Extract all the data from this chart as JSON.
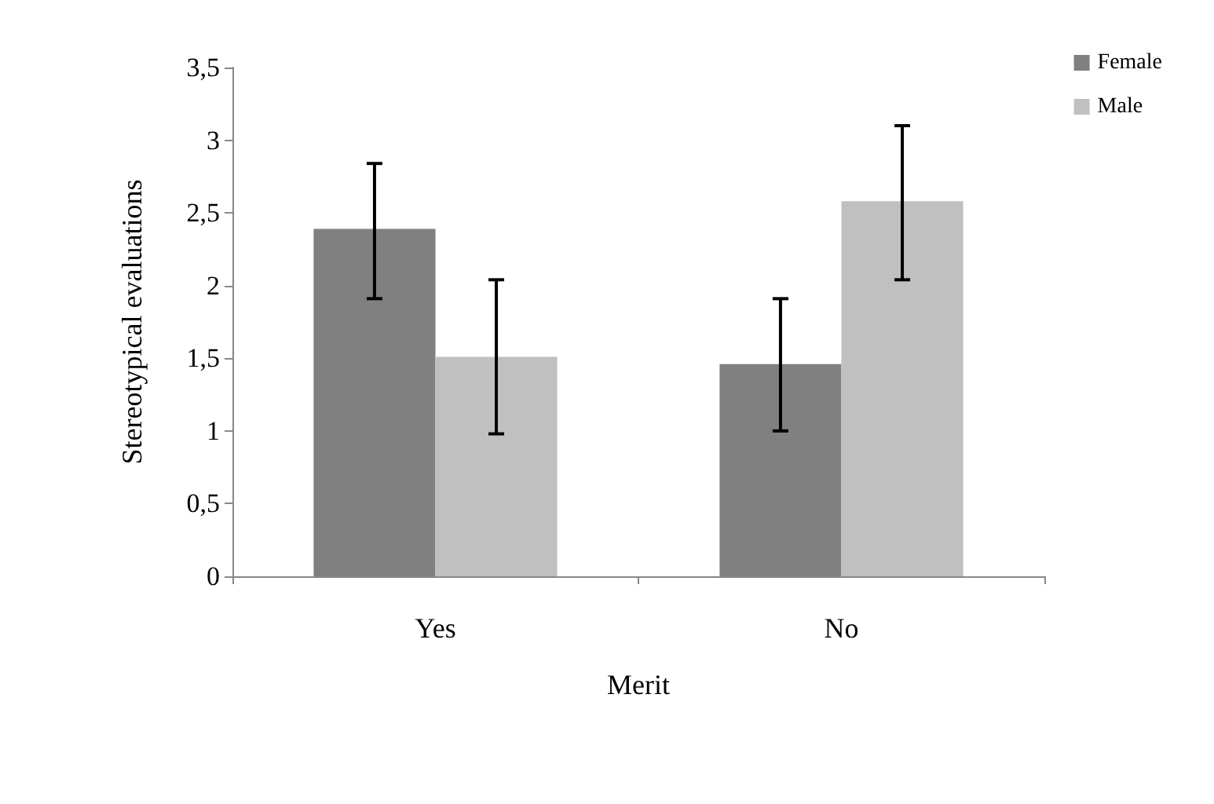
{
  "chart_data": {
    "type": "bar",
    "xlabel": "Merit",
    "ylabel": "Stereotypical evaluations",
    "categories": [
      "Yes",
      "No"
    ],
    "series": [
      {
        "name": "Female",
        "color": "#808080",
        "values": [
          2.39,
          1.46
        ],
        "errors": [
          [
            1.91,
            2.84
          ],
          [
            1.0,
            1.91
          ]
        ]
      },
      {
        "name": "Male",
        "color": "#c0c0c0",
        "values": [
          1.51,
          2.58
        ],
        "errors": [
          [
            0.98,
            2.04
          ],
          [
            2.04,
            3.1
          ]
        ]
      }
    ],
    "ylim": [
      0,
      3.5
    ],
    "yticks": [
      0,
      {
        "value": 0.5,
        "label": "0,5"
      },
      1,
      {
        "value": 1.5,
        "label": "1,5"
      },
      2,
      {
        "value": 2.5,
        "label": "2,5"
      },
      3,
      {
        "value": 3.5,
        "label": "3,5"
      }
    ],
    "grid": false,
    "legend": "top right"
  }
}
